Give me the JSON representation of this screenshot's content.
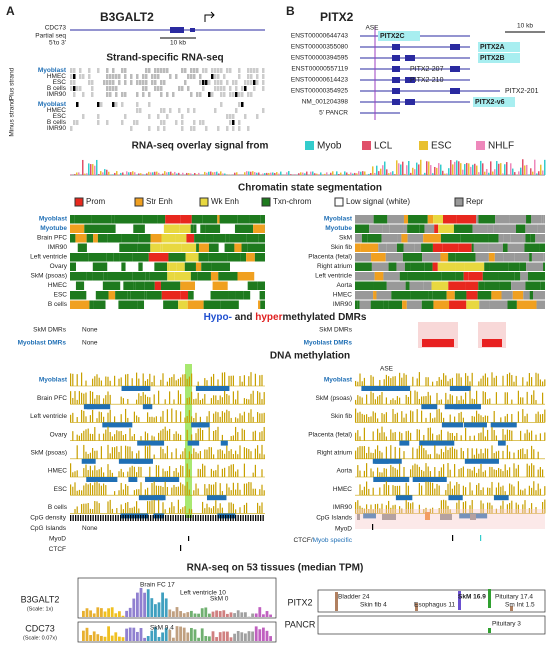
{
  "panel_a": {
    "letter": "A",
    "gene": "B3GALT2",
    "gene_track_labels": [
      "CDC73",
      "Partial seq",
      "5'to 3'"
    ],
    "scale": "10 kb",
    "rnaseq_title": "Strand-specific RNA-seq",
    "strands": [
      "Plus strand",
      "Minus strand"
    ],
    "cell_lines": [
      "Myoblast",
      "HMEC",
      "ESC",
      "B cells",
      "IMR90"
    ],
    "chromatin_rows": [
      "Myoblast",
      "Myotube",
      "Brain PFC",
      "IMR90",
      "Left ventricle",
      "Ovary",
      "SkM (psoas)",
      "HMEC",
      "ESC",
      "B cells"
    ],
    "dmr_rows": [
      "SkM DMRs",
      "Myoblast DMRs"
    ],
    "dmr_values": [
      "None",
      "None"
    ],
    "methylation_rows": [
      "Myoblast",
      "Brain PFC",
      "Left ventricle",
      "Ovary",
      "SkM (psoas)",
      "HMEC",
      "ESC",
      "B cells"
    ],
    "bottom_rows": [
      "CpG density",
      "CpG Islands",
      "MyoD",
      "CTCF"
    ],
    "cpg_islands_value": "None"
  },
  "panel_b": {
    "letter": "B",
    "gene": "PITX2",
    "scale": "10 kb",
    "transcripts": [
      "ENST00000644743",
      "ENST00000355080",
      "ENST00000394595",
      "ENST00000557119",
      "ENST00000614423",
      "ENST00000354925",
      "NM_001204398",
      "5' PANCR"
    ],
    "isoforms": [
      "PITX2C",
      "PITX2A",
      "PITX2B",
      "PITX2-207",
      "PITX2-210",
      "PITX2-201",
      "PITX2-v6"
    ],
    "ase": "ASE",
    "chromatin_rows": [
      "Myoblast",
      "Myotube",
      "SkM",
      "Skin fib",
      "Placenta (fetal)",
      "Right atrium",
      "Left ventricle",
      "Aorta",
      "HMEC",
      "IMR90"
    ],
    "dmr_rows": [
      "SkM DMRs",
      "Myoblast DMRs"
    ],
    "methylation_rows": [
      "Myoblast",
      "SkM (psoas)",
      "Skin fib",
      "Placenta (fetal)",
      "Right atrium",
      "Aorta",
      "HMEC",
      "IMR90"
    ],
    "bottom_rows": [
      "CpG Islands",
      "MyoD",
      "CTCF/",
      "Myob specific"
    ]
  },
  "center": {
    "overlay_title": "RNA-seq overlay signal from",
    "overlay_legend": [
      "Myob",
      "LCL",
      "ESC",
      "NHLF"
    ],
    "overlay_colors": [
      "#33cccc",
      "#e0506a",
      "#e8c030",
      "#ee88bb"
    ],
    "chromatin_title": "Chromatin state segmentation",
    "chromatin_legend": [
      "Prom",
      "Str Enh",
      "Wk Enh",
      "Txn-chrom",
      "Low signal (white)",
      "Repr"
    ],
    "chromatin_colors": [
      "#e8281e",
      "#f0a020",
      "#e8d840",
      "#1e7a1e",
      "#ffffff",
      "#999999"
    ],
    "dmr_title": [
      "Hypo-",
      " and ",
      "hyper",
      "methylated DMRs"
    ],
    "methylation_title": "DNA methylation"
  },
  "tissues": {
    "title": "RNA-seq on 53 tissues (median TPM)",
    "a_genes": [
      "B3GALT2",
      "CDC73"
    ],
    "a_scales": [
      "(Scale: 1x)",
      "(Scale: 0.07x)"
    ],
    "a_annotations": [
      "Brain FC 17",
      "Left ventricle 10",
      "SkM 0",
      "SkM 9.4"
    ],
    "b_genes": [
      "PITX2",
      "PANCR"
    ],
    "b_annotations": [
      "Bladder 24",
      "Esophagus 11",
      "SkM 16.9",
      "Pituitary 17.4",
      "Skin fib 4",
      "Sm Int 1.5",
      "Pituitary 3"
    ]
  }
}
